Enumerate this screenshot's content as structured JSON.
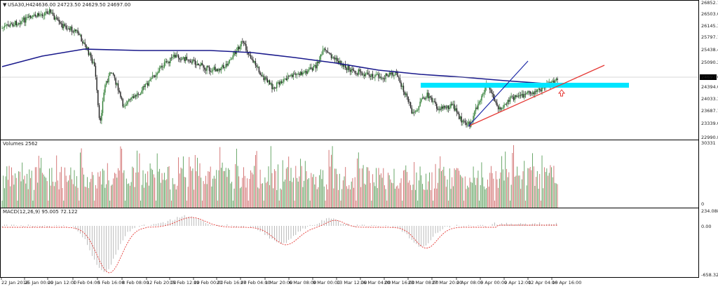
{
  "chart_data": {
    "type": "candlestick",
    "header": {
      "symbol_label": "USA30,H4",
      "ohlc_text": "24636.00 24723.50 24629.50 24697.00"
    },
    "price_pane": {
      "ylim": [
        22990.8,
        26852.15
      ],
      "y_ticks": [
        "26852.15",
        "26503.05",
        "26145.30",
        "25797.15",
        "25438.45",
        "25090.25",
        "24697.00",
        "24394.00",
        "24033.30",
        "23687.15",
        "23339.00",
        "22990.80"
      ],
      "current_price": "24697.00",
      "candles_count": 470,
      "moving_average": "blue line",
      "annotations": [
        "cyan resistance zone",
        "red rising trendline",
        "blue steep trendline",
        "red up arrow"
      ]
    },
    "volume_pane": {
      "label": "Volumes 2562",
      "y_ticks": [
        "30331",
        "0"
      ]
    },
    "macd_pane": {
      "label": "MACD(12,26,9) 95.005 72.122",
      "y_ticks": [
        "234.088",
        "0.00",
        "-658.322"
      ]
    },
    "x_ticks": [
      "22 Jan 2018",
      "25 Jan 00:00",
      "29 Jan 12:00",
      "1 Feb 04:00",
      "5 Feb 16:00",
      "8 Feb 08:00",
      "12 Feb 20:00",
      "15 Feb 12:00",
      "19 Feb 00:00",
      "21 Feb 16:00",
      "27 Feb 04:00",
      "1 Mar 20:00",
      "6 Mar 08:00",
      "9 Mar 00:00",
      "13 Mar 12:00",
      "16 Mar 04:00",
      "20 Mar 16:00",
      "23 Mar 08:00",
      "27 Mar 20:00",
      "2 Apr 08:00",
      "5 Apr 00:00",
      "9 Apr 12:00",
      "12 Apr 04:00",
      "16 Apr 16:00"
    ],
    "colors": {
      "up_candle": "#2e7d32",
      "down_candle": "#1b1b1b",
      "volume_up": "#5a9e5a",
      "volume_down": "#d06a6a",
      "ma_line": "#1a1a8c",
      "zone": "#00e5ff",
      "trend_red": "#e53935",
      "trend_blue": "#1e2aa8",
      "macd_signal": "#e53935",
      "macd_hist": "#9e9e9e"
    }
  }
}
